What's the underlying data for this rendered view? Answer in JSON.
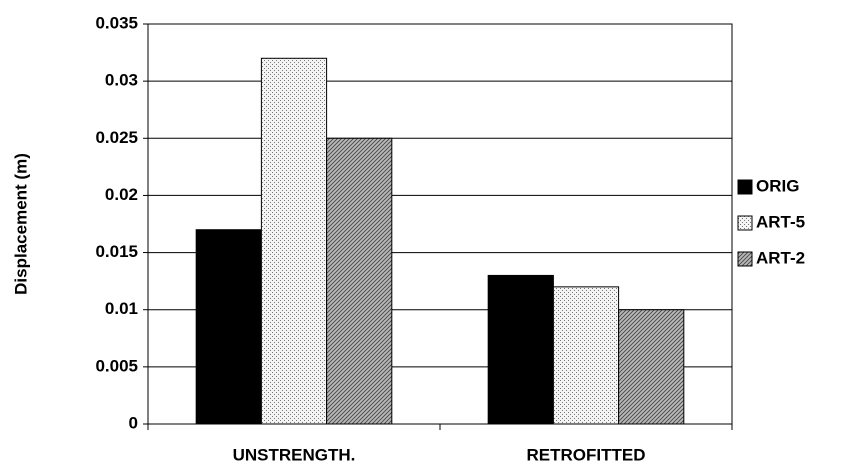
{
  "chart_data": {
    "type": "bar",
    "y_label": "Displacement (m)",
    "categories": [
      "UNSTRENGTH.",
      "RETROFITTED"
    ],
    "series": [
      {
        "name": "ORIG",
        "color": "#000000",
        "values": [
          0.017,
          0.013
        ]
      },
      {
        "name": "ART-5",
        "color": "#f4f4f4",
        "values": [
          0.032,
          0.012
        ]
      },
      {
        "name": "ART-2",
        "color": "#b8b8b8",
        "values": [
          0.025,
          0.01
        ]
      }
    ],
    "ylim": [
      0,
      0.035
    ],
    "yticks": [
      0,
      0.005,
      0.01,
      0.015,
      0.02,
      0.025,
      0.03,
      0.035
    ],
    "grid": true
  }
}
